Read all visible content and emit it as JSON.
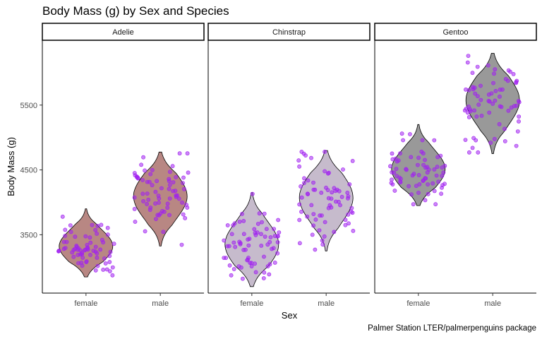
{
  "chart_data": {
    "type": "violin",
    "title": "Body Mass (g) by Sex and Species",
    "xlabel": "Sex",
    "ylabel": "Body Mass (g)",
    "caption": "Palmer Station LTER/palmerpenguins package",
    "ylim": [
      2600,
      6500
    ],
    "y_ticks": [
      3500,
      4500,
      5500
    ],
    "grid": false,
    "point_color": "#A020F0",
    "facets": [
      {
        "label": "Adelie",
        "fill": "#b88783",
        "groups": [
          {
            "category": "female",
            "min": 2850,
            "max": 3900
          },
          {
            "category": "male",
            "min": 3325,
            "max": 4775
          }
        ]
      },
      {
        "label": "Chinstrap",
        "fill": "#c6bbcc",
        "groups": [
          {
            "category": "female",
            "min": 2700,
            "max": 4150
          },
          {
            "category": "male",
            "min": 3250,
            "max": 4800
          }
        ]
      },
      {
        "label": "Gentoo",
        "fill": "#999999",
        "groups": [
          {
            "category": "female",
            "min": 3950,
            "max": 5200
          },
          {
            "category": "male",
            "min": 4750,
            "max": 6300
          }
        ]
      }
    ]
  }
}
